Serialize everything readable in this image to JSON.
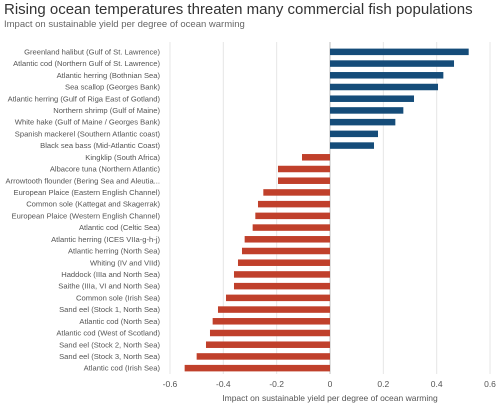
{
  "title": "Rising ocean temperatures threaten many commercial fish populations",
  "subtitle": "Impact on sustainable yield per degree of ocean warming",
  "chart_data": {
    "type": "bar",
    "orientation": "horizontal",
    "xlabel": "Impact on sustainable yield per degree of ocean warming",
    "xlim": [
      -0.6,
      0.6
    ],
    "xticks": [
      -0.6,
      -0.4,
      -0.2,
      0,
      0.2,
      0.4,
      0.6
    ],
    "xtick_labels": [
      "-0.6",
      "-0.4",
      "-0.2",
      "0",
      "0.2",
      "0.4",
      "0.6"
    ],
    "grid": true,
    "positive_color": "#154c79",
    "negative_color": "#c0402b",
    "categories": [
      "Greenland halibut (Gulf of St. Lawrence)",
      "Atlantic cod (Northern Gulf of St. Lawrence)",
      "Atlantic herring (Bothnian Sea)",
      "Sea scallop (Georges Bank)",
      "Atlantic herring (Gulf of Riga East of Gotland)",
      "Northern shrimp (Gulf of Maine)",
      "White hake (Gulf of Maine / Georges Bank)",
      "Spanish mackerel (Southern Atlantic coast)",
      "Black sea bass (Mid-Atlantic Coast)",
      "Kingklip (South Africa)",
      "Albacore tuna (Northern Atlantic)",
      "Arrowtooth flounder (Bering Sea and Aleutia...",
      "European Plaice (Eastern English Channel)",
      "Common sole (Kattegat and Skagerrak)",
      "European Plaice (Western English Channel)",
      "Atlantic cod (Celtic Sea)",
      "Atlantic herring (ICES VIIa-g-h-j)",
      "Atlantic herring (North Sea)",
      "Whiting (IV and VIId)",
      "Haddock (IIIa and North Sea)",
      "Saithe (IIIa, VI and North Sea)",
      "Common sole (Irish Sea)",
      "Sand eel (Stock 1, North Sea)",
      "Atlantic cod (North Sea)",
      "Atlantic cod (West of Scotland)",
      "Sand eel (Stock 2, North Sea)",
      "Sand eel (Stock 3, North Sea)",
      "Atlantic cod (Irish Sea)"
    ],
    "values": [
      0.52,
      0.465,
      0.425,
      0.405,
      0.315,
      0.275,
      0.245,
      0.18,
      0.165,
      -0.105,
      -0.195,
      -0.195,
      -0.25,
      -0.27,
      -0.28,
      -0.29,
      -0.32,
      -0.33,
      -0.345,
      -0.36,
      -0.36,
      -0.39,
      -0.42,
      -0.44,
      -0.45,
      -0.465,
      -0.5,
      -0.545
    ]
  }
}
